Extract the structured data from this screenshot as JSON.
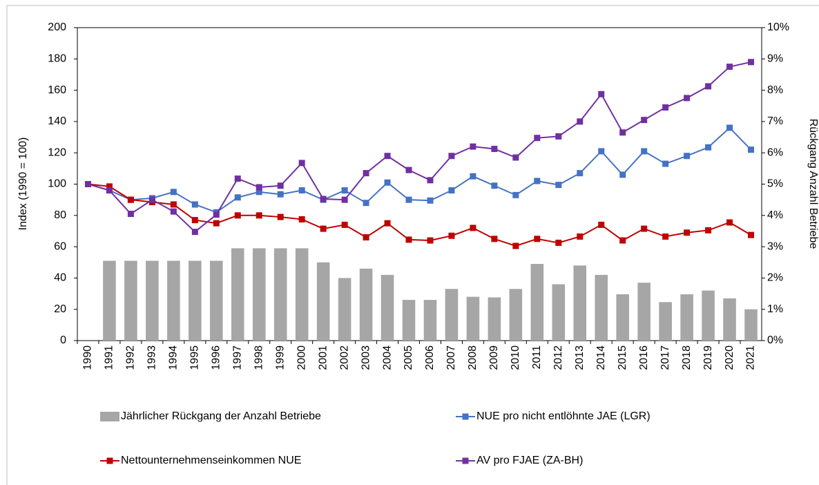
{
  "chart_data": {
    "type": "combo",
    "y_label": "Index (1990 = 100)",
    "y2_label": "Rückgang Anzahl Betriebe",
    "categories": [
      "1990",
      "1991",
      "1992",
      "1993",
      "1994",
      "1995",
      "1996",
      "1997",
      "1998",
      "1999",
      "2000",
      "2001",
      "2002",
      "2003",
      "2004",
      "2005",
      "2006",
      "2007",
      "2008",
      "2009",
      "2010",
      "2011",
      "2012",
      "2013",
      "2014",
      "2015",
      "2016",
      "2017",
      "2018",
      "2019",
      "2020",
      "2021"
    ],
    "ylim": [
      0,
      200
    ],
    "yticks": [
      0,
      20,
      40,
      60,
      80,
      100,
      120,
      140,
      160,
      180,
      200
    ],
    "y2lim": [
      0,
      10
    ],
    "y2ticks": [
      {
        "value": 0,
        "label": "0%"
      },
      {
        "value": 1,
        "label": "1%"
      },
      {
        "value": 2,
        "label": "2%"
      },
      {
        "value": 3,
        "label": "3%"
      },
      {
        "value": 4,
        "label": "4%"
      },
      {
        "value": 5,
        "label": "5%"
      },
      {
        "value": 6,
        "label": "6%"
      },
      {
        "value": 7,
        "label": "7%"
      },
      {
        "value": 8,
        "label": "8%"
      },
      {
        "value": 9,
        "label": "9%"
      },
      {
        "value": 10,
        "label": "10%"
      }
    ],
    "grid": false,
    "series": [
      {
        "name": "Jährlicher Rückgang der Anzahl Betriebe",
        "type": "bar",
        "axis": "y2",
        "color": "#a6a6a6",
        "values": [
          null,
          2.55,
          2.55,
          2.55,
          2.55,
          2.55,
          2.55,
          2.95,
          2.95,
          2.95,
          2.95,
          2.5,
          2.0,
          2.3,
          2.1,
          1.3,
          1.3,
          1.65,
          1.4,
          1.38,
          1.65,
          2.45,
          1.8,
          2.4,
          2.1,
          1.48,
          1.85,
          1.23,
          1.48,
          1.6,
          1.35,
          1.0
        ]
      },
      {
        "name": "NUE pro nicht entlöhnte JAE (LGR)",
        "type": "line",
        "color": "#4472c4",
        "values": [
          100,
          96,
          90,
          91,
          95,
          87,
          82,
          91.5,
          95,
          93.5,
          96,
          90,
          96,
          88,
          101,
          90,
          89.5,
          96,
          105,
          99,
          93,
          102,
          99.5,
          107,
          121,
          106,
          121,
          113,
          118,
          123.5,
          136,
          122
        ]
      },
      {
        "name": "Nettounternehmenseinkommen NUE",
        "type": "line",
        "color": "#c00000",
        "values": [
          100,
          98.5,
          90,
          88.5,
          87,
          77,
          75,
          80,
          80,
          79,
          77.5,
          71.5,
          74,
          66,
          75,
          64.5,
          64,
          67,
          72,
          65,
          60.5,
          65,
          62.5,
          66.5,
          74,
          64,
          71.5,
          66.5,
          69,
          70.5,
          75.5,
          67.5
        ]
      },
      {
        "name": "AV pro FJAE (ZA-BH)",
        "type": "line",
        "color": "#7030a0",
        "values": [
          100,
          96,
          81,
          90,
          82.5,
          69.5,
          80.5,
          103.5,
          98,
          99,
          113.5,
          90.5,
          90,
          107,
          118,
          109,
          102.5,
          118,
          124,
          122.5,
          117,
          129.5,
          130.5,
          140,
          157.5,
          133,
          141,
          149,
          155,
          162.5,
          175,
          178
        ]
      }
    ]
  }
}
